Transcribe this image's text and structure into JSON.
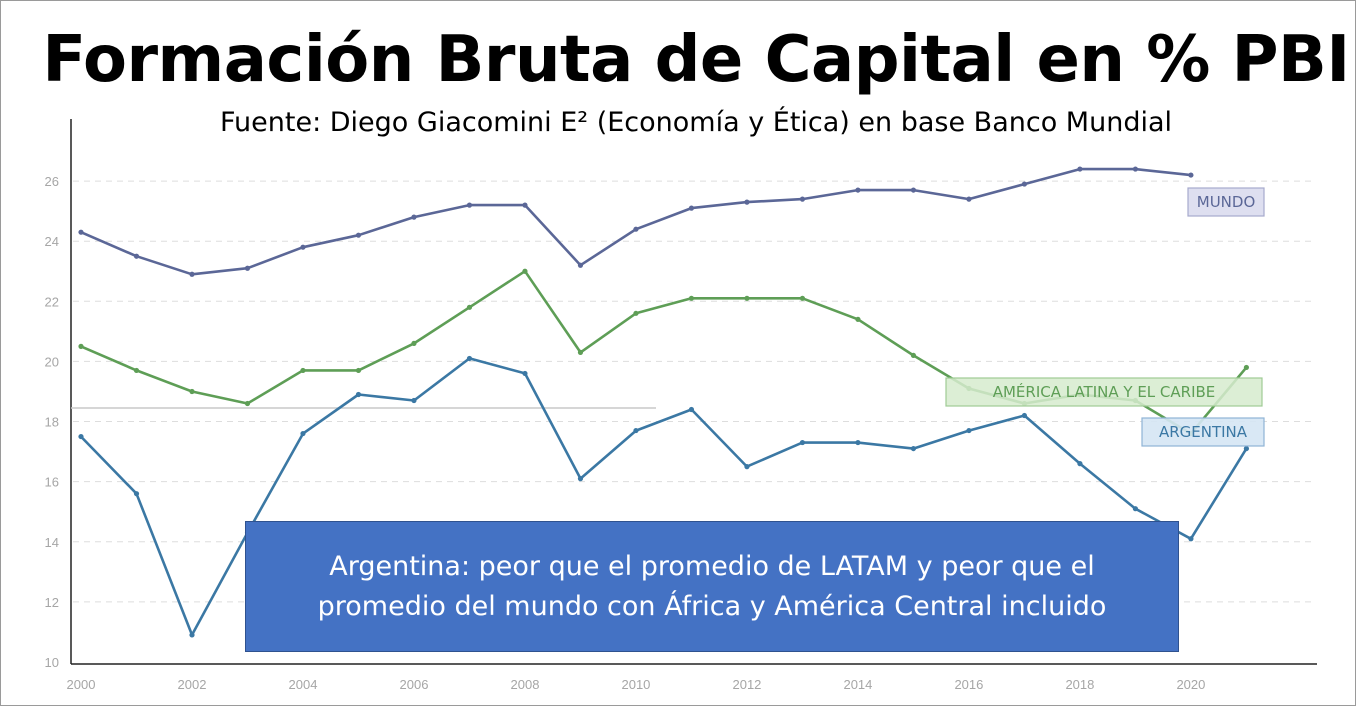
{
  "title": "Formación Bruta de Capital en % PBI",
  "subtitle": "Fuente: Diego Giacomini E² (Economía y Ética) en base Banco Mundial",
  "callout": "Argentina: peor que el promedio de LATAM y peor que el promedio del mundo con África y América Central incluido",
  "colors": {
    "mundo": "#5b6797",
    "latam": "#5e9e56",
    "argentina": "#3b78a4",
    "callout": "#4472c4",
    "grid": "#dddddd",
    "tick": "#a6a6a6"
  },
  "chart_data": {
    "type": "line",
    "x": [
      2000,
      2001,
      2002,
      2003,
      2004,
      2005,
      2006,
      2007,
      2008,
      2009,
      2010,
      2011,
      2012,
      2013,
      2014,
      2015,
      2016,
      2017,
      2018,
      2019,
      2020,
      2021
    ],
    "xticks": [
      2000,
      2002,
      2004,
      2006,
      2008,
      2010,
      2012,
      2014,
      2016,
      2018,
      2020
    ],
    "yticks": [
      10,
      12,
      14,
      16,
      18,
      20,
      22,
      24,
      26
    ],
    "ylim": [
      10,
      27.3
    ],
    "xlim": [
      2000,
      2022.2
    ],
    "grid": "horizontal dashed",
    "reference_line_y": 18.6,
    "series": [
      {
        "name": "MUNDO",
        "values": [
          24.3,
          23.5,
          22.9,
          23.1,
          23.8,
          24.2,
          24.8,
          25.2,
          25.2,
          23.2,
          24.4,
          25.1,
          25.3,
          25.4,
          25.7,
          25.7,
          25.4,
          25.9,
          26.4,
          26.4,
          26.2,
          null
        ]
      },
      {
        "name": "AMÉRICA LATINA Y EL CARIBE",
        "values": [
          20.5,
          19.7,
          19.0,
          18.6,
          19.7,
          19.7,
          20.6,
          21.8,
          23.0,
          20.3,
          21.6,
          22.1,
          22.1,
          22.1,
          21.4,
          20.2,
          19.1,
          18.6,
          18.9,
          18.7,
          17.6,
          19.8
        ]
      },
      {
        "name": "ARGENTINA",
        "values": [
          17.5,
          15.6,
          10.9,
          14.3,
          17.6,
          18.9,
          18.7,
          20.1,
          19.6,
          16.1,
          17.7,
          18.4,
          16.5,
          17.3,
          17.3,
          17.1,
          17.7,
          18.2,
          16.6,
          15.1,
          14.1,
          17.1
        ]
      }
    ],
    "labels": [
      "MUNDO",
      "AMÉRICA LATINA Y EL CARIBE",
      "ARGENTINA"
    ]
  }
}
